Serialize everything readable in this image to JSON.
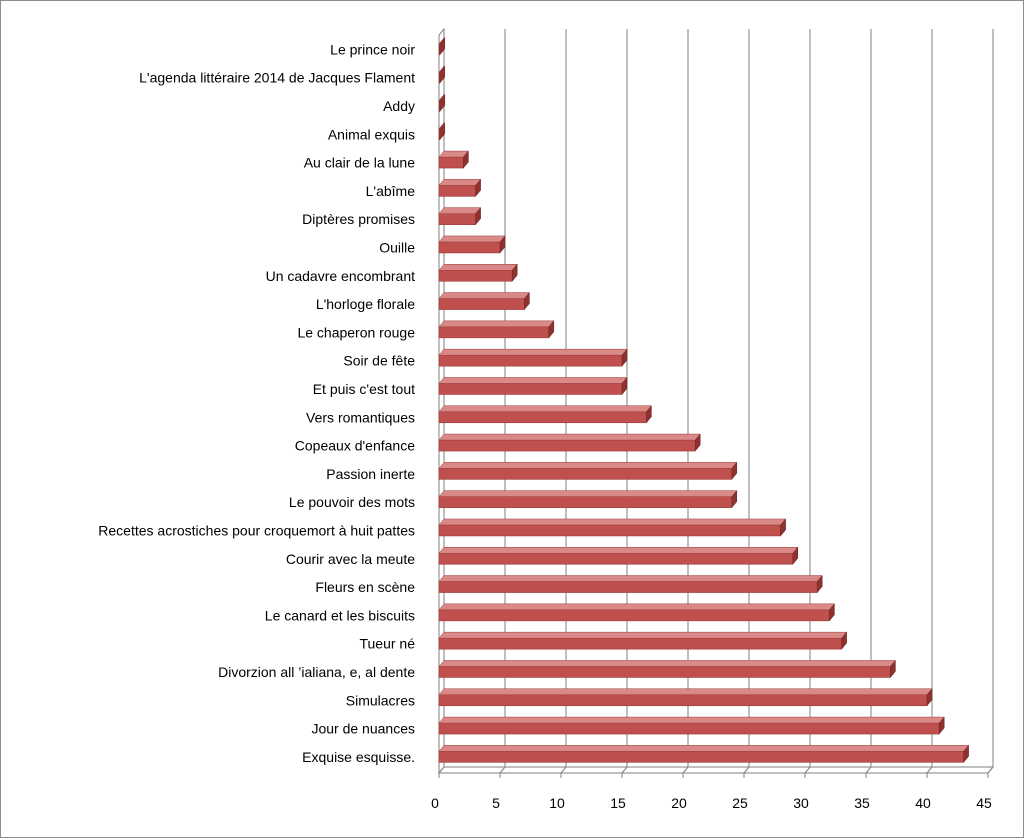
{
  "chart_data": {
    "type": "bar",
    "orientation": "horizontal",
    "style": "3d",
    "categories": [
      "Exquise esquisse.",
      "Jour de nuances",
      "Simulacres",
      "Divorzion all ’ialiana, e, al dente",
      "Tueur né",
      "Le canard  et les biscuits",
      "Fleurs en scène",
      "Courir avec la meute",
      "Recettes acrostiches pour croquemort à huit pattes",
      "Le pouvoir des mots",
      "Passion inerte",
      "Copeaux d'enfance",
      "Vers romantiques",
      "Et puis c'est tout",
      "Soir de fête",
      "Le chaperon rouge",
      "L'horloge florale",
      "Un cadavre encombrant",
      "Ouille",
      "Diptères  promises",
      "L'abîme",
      "Au clair de la lune",
      "Animal exquis",
      "Addy",
      "L'agenda littéraire 2014 de Jacques Flament",
      "Le prince noir"
    ],
    "values": [
      43,
      41,
      40,
      37,
      33,
      32,
      31,
      29,
      28,
      24,
      24,
      21,
      17,
      15,
      15,
      9,
      7,
      6,
      5,
      3,
      3,
      2,
      0,
      0,
      0,
      0
    ],
    "title": "",
    "xlabel": "",
    "ylabel": "",
    "xlim": [
      0,
      45
    ],
    "x_ticks": [
      "0",
      "5",
      "10",
      "15",
      "20",
      "25",
      "30",
      "35",
      "40",
      "45"
    ],
    "grid": "vertical",
    "legend": "none",
    "colors": {
      "bar_face": "#C0504D",
      "bar_top": "#D98A88",
      "bar_side": "#8E3230",
      "grid": "#7f7f7f",
      "axis": "#7f7f7f",
      "frame": "#8c8c8c"
    }
  }
}
